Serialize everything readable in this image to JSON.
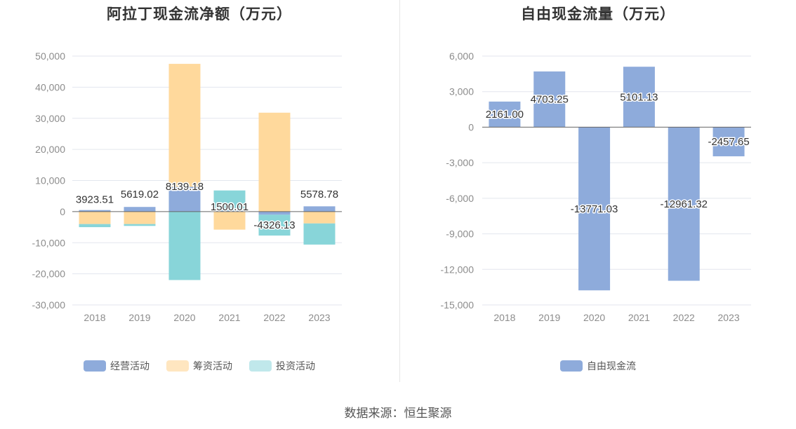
{
  "colors": {
    "operating": "#8eabdb",
    "financing": "#ffd99c",
    "investing": "#88d5d9",
    "free_cash_flow": "#8eabdb",
    "grid": "#e3e6ee",
    "zero_line": "#666666"
  },
  "source_text": "数据来源：恒生聚源",
  "chart_data": [
    {
      "type": "bar",
      "stacked": true,
      "title": "阿拉丁现金流净额（万元）",
      "categories": [
        "2018",
        "2019",
        "2020",
        "2021",
        "2022",
        "2023"
      ],
      "series": [
        {
          "name": "经营活动",
          "key": "operating",
          "values": [
            500,
            1500,
            8000,
            300,
            -1000,
            1700
          ]
        },
        {
          "name": "筹资活动",
          "key": "financing",
          "values": [
            -4000,
            -4000,
            39500,
            -5800,
            31800,
            -3800
          ]
        },
        {
          "name": "投资活动",
          "key": "investing",
          "values": [
            -1000,
            -600,
            -22000,
            6500,
            -6700,
            -6800
          ]
        }
      ],
      "net_labels": [
        "3923.51",
        "5619.02",
        "8139.18",
        "1500.01",
        "-4326.13",
        "5578.78"
      ],
      "net_values": [
        3923.51,
        5619.02,
        8139.18,
        1500.01,
        -4326.13,
        5578.78
      ],
      "yticks": [
        "50,000",
        "40,000",
        "30,000",
        "20,000",
        "10,000",
        "0",
        "-10,000",
        "-20,000",
        "-30,000"
      ],
      "ylim": [
        -30000,
        50000
      ],
      "legend": [
        "经营活动",
        "筹资活动",
        "投资活动"
      ]
    },
    {
      "type": "bar",
      "title": "自由现金流量（万元）",
      "categories": [
        "2018",
        "2019",
        "2020",
        "2021",
        "2022",
        "2023"
      ],
      "series": [
        {
          "name": "自由现金流",
          "key": "free_cash_flow",
          "values": [
            2161.0,
            4703.25,
            -13771.03,
            5101.13,
            -12961.32,
            -2457.65
          ]
        }
      ],
      "labels": [
        "2161.00",
        "4703.25",
        "-13771.03",
        "5101.13",
        "-12961.32",
        "-2457.65"
      ],
      "yticks": [
        "6,000",
        "3,000",
        "0",
        "-3,000",
        "-6,000",
        "-9,000",
        "-12,000",
        "-15,000"
      ],
      "ylim": [
        -15000,
        6000
      ],
      "legend": [
        "自由现金流"
      ]
    }
  ]
}
